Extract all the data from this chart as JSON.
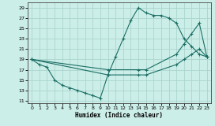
{
  "xlabel": "Humidex (Indice chaleur)",
  "bg_color": "#cceee8",
  "grid_color": "#aad4ce",
  "line_color": "#1a6e64",
  "xlim": [
    -0.5,
    23.5
  ],
  "ylim": [
    10.5,
    30.0
  ],
  "xticks": [
    0,
    1,
    2,
    3,
    4,
    5,
    6,
    7,
    8,
    9,
    10,
    11,
    12,
    13,
    14,
    15,
    16,
    17,
    18,
    19,
    20,
    21,
    22,
    23
  ],
  "yticks": [
    11,
    13,
    15,
    17,
    19,
    21,
    23,
    25,
    27,
    29
  ],
  "line1_x": [
    0,
    1,
    2,
    3,
    4,
    5,
    6,
    7,
    8,
    9,
    10,
    11,
    12,
    13,
    14,
    15,
    16,
    17,
    18,
    19,
    20,
    21,
    22,
    23
  ],
  "line1_y": [
    19,
    18,
    17.5,
    15,
    14,
    13.5,
    13,
    12.5,
    12,
    11.5,
    16,
    19.5,
    23,
    26.5,
    29,
    28,
    27.5,
    27.5,
    27,
    26,
    23,
    21.5,
    20,
    19.5
  ],
  "line2_x": [
    0,
    10,
    14,
    15,
    19,
    20,
    21,
    22,
    23
  ],
  "line2_y": [
    19,
    16,
    16,
    16,
    18,
    19,
    20,
    21,
    19.5
  ],
  "line3_x": [
    0,
    10,
    14,
    15,
    19,
    20,
    21,
    22,
    23
  ],
  "line3_y": [
    19,
    17,
    17,
    17,
    20,
    22,
    24,
    26,
    19.5
  ]
}
